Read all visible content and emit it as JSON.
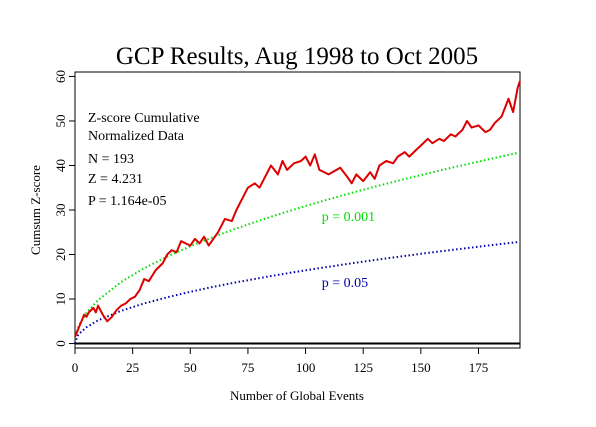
{
  "chart_data": {
    "type": "line",
    "title": "GCP Results, Aug 1998 to Oct 2005",
    "xlabel": "Number of Global Events",
    "ylabel": "Cumsum Z-score",
    "xlim": [
      0,
      193
    ],
    "ylim": [
      -1,
      61
    ],
    "x_ticks": [
      0,
      25,
      50,
      75,
      100,
      125,
      150,
      175
    ],
    "y_ticks": [
      0,
      10,
      20,
      30,
      40,
      50,
      60
    ],
    "grid": false,
    "legend": "none",
    "stats_text": [
      "Z-score Cumulative",
      "Normalized Data",
      "N = 193",
      "Z = 4.231",
      "P = 1.164e-05"
    ],
    "annotations": [
      {
        "text": "p = 0.001",
        "x": 107,
        "y": 27.5,
        "color": "#00dd00"
      },
      {
        "text": "p = 0.05",
        "x": 107,
        "y": 12.7,
        "color": "#0000aa"
      }
    ],
    "series": [
      {
        "color": "#dd0000",
        "style": "solid",
        "x": [
          0,
          2,
          4,
          5,
          6,
          8,
          9,
          10,
          12,
          14,
          16,
          18,
          20,
          22,
          24,
          26,
          28,
          30,
          32,
          35,
          38,
          40,
          42,
          44,
          46,
          48,
          50,
          52,
          54,
          56,
          58,
          60,
          62,
          65,
          68,
          70,
          72,
          75,
          78,
          80,
          82,
          85,
          88,
          90,
          92,
          95,
          98,
          100,
          102,
          104,
          106,
          110,
          115,
          118,
          120,
          122,
          125,
          128,
          130,
          132,
          135,
          138,
          140,
          143,
          145,
          148,
          150,
          153,
          155,
          158,
          160,
          163,
          165,
          168,
          170,
          172,
          175,
          178,
          180,
          182,
          185,
          188,
          190,
          192,
          193
        ],
        "y": [
          1.5,
          4.0,
          6.5,
          6.0,
          7.0,
          8.0,
          7.0,
          8.5,
          6.5,
          5.0,
          6.0,
          7.5,
          8.5,
          9.0,
          10.0,
          10.5,
          12.0,
          14.5,
          14.0,
          16.5,
          18.0,
          20.0,
          21.0,
          20.5,
          23.0,
          22.5,
          22.0,
          23.5,
          22.5,
          24.0,
          22.0,
          23.5,
          25.0,
          28.0,
          27.5,
          30.0,
          32.0,
          35.0,
          36.0,
          35.0,
          37.0,
          40.0,
          38.0,
          41.0,
          39.0,
          40.5,
          41.0,
          42.0,
          40.0,
          42.5,
          39.0,
          38.0,
          39.5,
          37.5,
          36.0,
          38.0,
          36.5,
          38.5,
          37.0,
          40.0,
          41.0,
          40.5,
          42.0,
          43.0,
          42.0,
          43.5,
          44.5,
          46.0,
          45.0,
          46.0,
          45.5,
          47.0,
          46.5,
          48.0,
          50.0,
          48.5,
          49.0,
          47.5,
          48.0,
          49.5,
          51.0,
          55.0,
          52.0,
          57.5,
          59.0
        ]
      },
      {
        "color": "#00dd00",
        "style": "dotted",
        "curve": "3.09*sqrt(x)",
        "x": [
          0,
          1,
          2,
          5,
          10,
          20,
          30,
          40,
          50,
          60,
          70,
          80,
          90,
          100,
          110,
          120,
          130,
          140,
          150,
          160,
          170,
          180,
          193
        ],
        "y": [
          0.0,
          3.09,
          4.37,
          6.91,
          9.77,
          13.82,
          16.92,
          19.54,
          21.85,
          23.94,
          25.85,
          27.64,
          29.31,
          30.9,
          32.41,
          33.85,
          35.23,
          36.56,
          37.84,
          39.09,
          40.29,
          41.46,
          42.93
        ]
      },
      {
        "color": "#0000aa",
        "style": "dotted",
        "curve": "1.645*sqrt(x)",
        "x": [
          0,
          1,
          2,
          5,
          10,
          20,
          30,
          40,
          50,
          60,
          70,
          80,
          90,
          100,
          110,
          120,
          130,
          140,
          150,
          160,
          170,
          180,
          193
        ],
        "y": [
          0.0,
          1.65,
          2.33,
          3.68,
          5.2,
          7.36,
          9.01,
          10.4,
          11.63,
          12.74,
          13.76,
          14.71,
          15.61,
          16.45,
          17.25,
          18.02,
          18.76,
          19.46,
          20.15,
          20.81,
          21.45,
          22.07,
          22.85
        ]
      }
    ],
    "baseline": {
      "y": 0,
      "color": "#000000"
    }
  }
}
